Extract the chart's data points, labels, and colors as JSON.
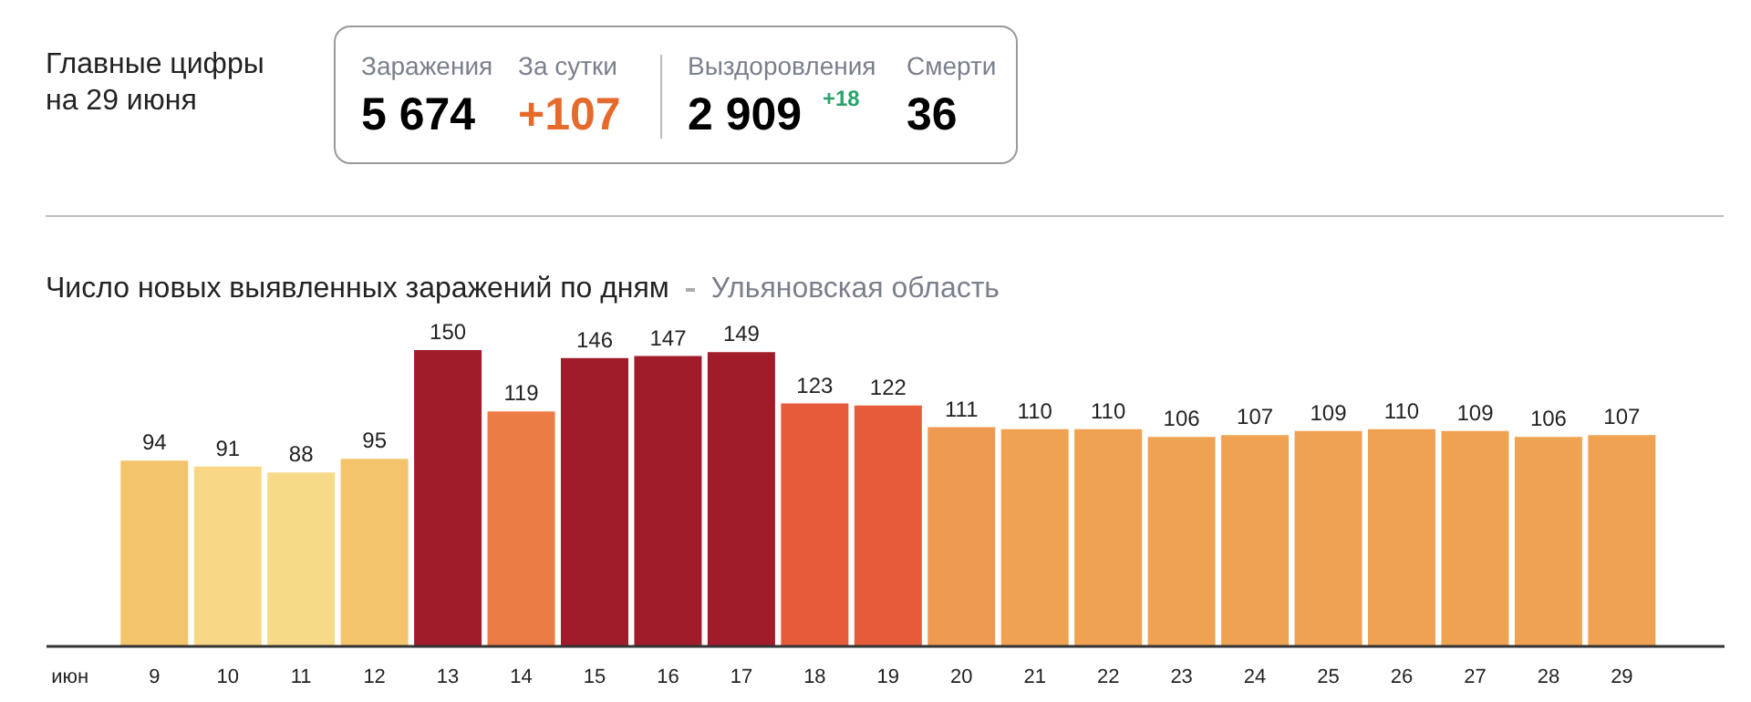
{
  "chart_data": {
    "type": "bar",
    "title": "Число новых выявленных заражений по дням",
    "subtitle": "Ульяновская область",
    "categories": [
      "9",
      "10",
      "11",
      "12",
      "13",
      "14",
      "15",
      "16",
      "17",
      "18",
      "19",
      "20",
      "21",
      "22",
      "23",
      "24",
      "25",
      "26",
      "27",
      "28",
      "29"
    ],
    "values": [
      94,
      91,
      88,
      95,
      150,
      119,
      146,
      147,
      149,
      123,
      122,
      111,
      110,
      110,
      106,
      107,
      109,
      110,
      109,
      106,
      107
    ],
    "colors": [
      "#f4c46d",
      "#f7d785",
      "#f7da88",
      "#f4c46d",
      "#a01c2b",
      "#ec7c45",
      "#a01c2b",
      "#a01c2b",
      "#a01c2b",
      "#e65c3b",
      "#e65c3b",
      "#ef9a52",
      "#f0a253",
      "#f0a253",
      "#f0a253",
      "#f0a253",
      "#f0a253",
      "#f0a253",
      "#f0a253",
      "#f0a253",
      "#f0a253"
    ],
    "data_labels": true,
    "grid": false,
    "annotations": [
      "Главные цифры\nна 29 июня",
      "Заражения",
      "5 674",
      "За сутки",
      "+107",
      "Выздоровления",
      "2 909",
      "+18",
      "Смерти",
      "36",
      "июн"
    ]
  }
}
